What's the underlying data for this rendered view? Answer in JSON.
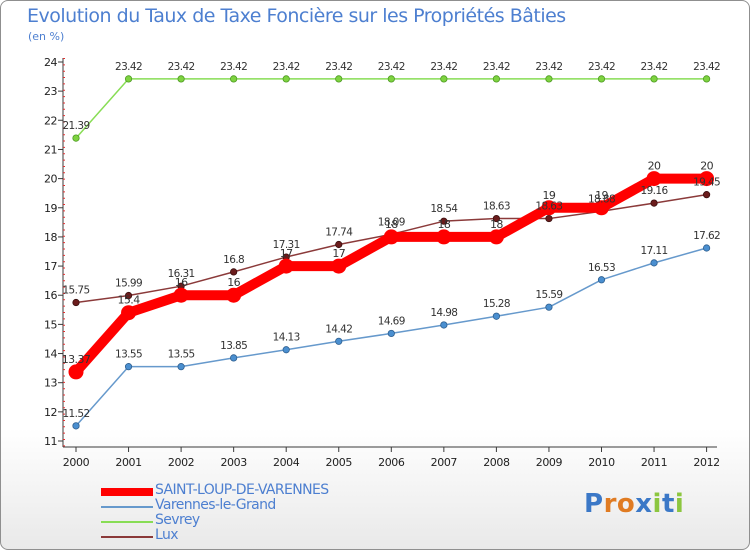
{
  "chart_data": {
    "type": "line",
    "title": "Evolution du Taux de Taxe Foncière sur les Propriétés Bâties",
    "ylabel": "(en %)",
    "xlabel": "",
    "x": [
      "2000",
      "2001",
      "2002",
      "2003",
      "2004",
      "2005",
      "2006",
      "2007",
      "2008",
      "2009",
      "2010",
      "2011",
      "2012"
    ],
    "ylim": [
      11,
      24
    ],
    "yticks": [
      "11",
      "12",
      "13",
      "14",
      "15",
      "16",
      "17",
      "18",
      "19",
      "20",
      "21",
      "22",
      "23",
      "24"
    ],
    "grid": "none",
    "legend_position": "bottom-left",
    "series": [
      {
        "name": "SAINT-LOUP-DE-VARENNES",
        "color": "#ff0000",
        "values": [
          13.37,
          15.4,
          16,
          16,
          17,
          17,
          18,
          18,
          18,
          19,
          19,
          20,
          20
        ],
        "labels": [
          "13.37",
          "15.4",
          "16",
          "16",
          "17",
          "17",
          "18",
          "18",
          "18",
          "19",
          "19",
          "20",
          "20"
        ]
      },
      {
        "name": "Varennes-le-Grand",
        "color": "#6699cc",
        "values": [
          11.52,
          13.55,
          13.55,
          13.85,
          14.13,
          14.42,
          14.69,
          14.98,
          15.28,
          15.59,
          16.53,
          17.11,
          17.62
        ],
        "labels": [
          "11.52",
          "13.55",
          "13.55",
          "13.85",
          "14.13",
          "14.42",
          "14.69",
          "14.98",
          "15.28",
          "15.59",
          "16.53",
          "17.11",
          "17.62"
        ]
      },
      {
        "name": "Sevrey",
        "color": "#88dd55",
        "values": [
          21.39,
          23.42,
          23.42,
          23.42,
          23.42,
          23.42,
          23.42,
          23.42,
          23.42,
          23.42,
          23.42,
          23.42,
          23.42
        ],
        "labels": [
          "21.39",
          "23.42",
          "23.42",
          "23.42",
          "23.42",
          "23.42",
          "23.42",
          "23.42",
          "23.42",
          "23.42",
          "23.42",
          "23.42",
          "23.42"
        ]
      },
      {
        "name": "Lux",
        "color": "#8b3a3a",
        "values": [
          15.75,
          15.99,
          16.31,
          16.8,
          17.31,
          17.74,
          18.09,
          18.54,
          18.63,
          18.63,
          18.88,
          19.16,
          19.45
        ],
        "labels": [
          "15.75",
          "15.99",
          "16.31",
          "16.8",
          "17.31",
          "17.74",
          "18.09",
          "18.54",
          "18.63",
          "18.63",
          "18.88",
          "19.16",
          "19.45"
        ]
      }
    ]
  },
  "logo": {
    "letters": [
      "P",
      "r",
      "o",
      "x",
      "i",
      "t",
      "i"
    ],
    "colors": [
      "#3b78c7",
      "#e07b22",
      "#e07b22",
      "#3b78c7",
      "#8cc63f",
      "#3b78c7",
      "#8cc63f"
    ]
  }
}
